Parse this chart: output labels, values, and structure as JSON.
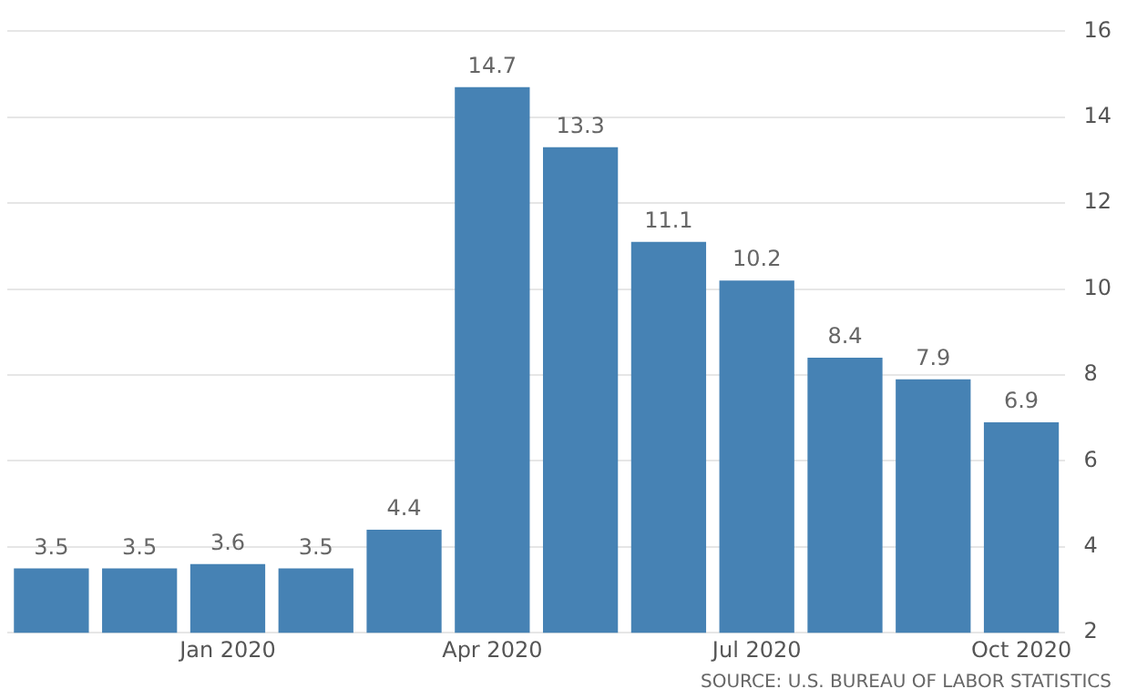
{
  "chart_data": {
    "type": "bar",
    "categories": [
      null,
      null,
      "Jan 2020",
      null,
      null,
      "Apr 2020",
      null,
      null,
      "Jul 2020",
      null,
      null,
      "Oct 2020"
    ],
    "values": [
      3.5,
      3.5,
      3.6,
      3.5,
      4.4,
      14.7,
      13.3,
      11.1,
      10.2,
      8.4,
      7.9,
      6.9
    ],
    "color": "#4682b4",
    "ylim": [
      2,
      16
    ],
    "yticks": [
      2,
      4,
      6,
      8,
      10,
      12,
      14,
      16
    ],
    "grid": "y",
    "data_labels": true,
    "annotations": [
      "SOURCE: U.S. BUREAU OF LABOR STATISTICS"
    ]
  }
}
